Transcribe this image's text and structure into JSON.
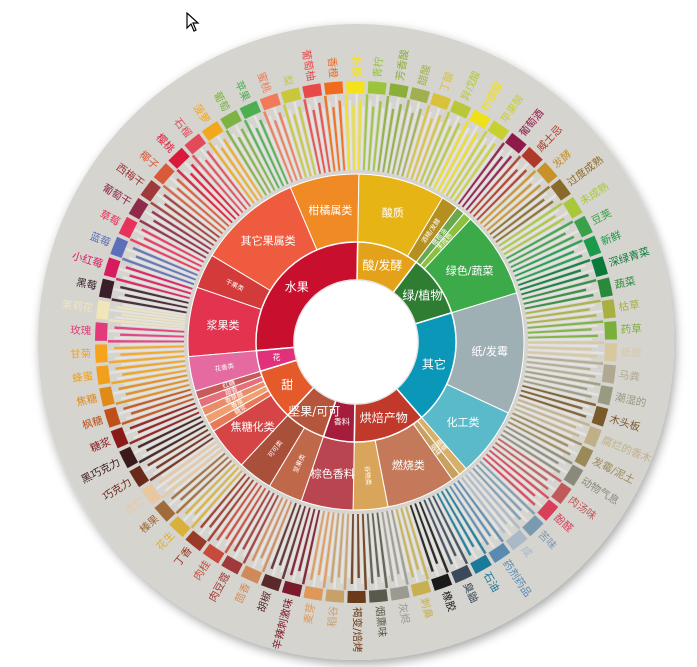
{
  "colors": {
    "fruit": "#c8102e",
    "flower": "#e0317a",
    "sweet": "#e55a2b",
    "nutty": "#a0503a",
    "roast": "#b23a48",
    "cereal": "#d9a55a",
    "other": "#0b98b8",
    "sour": "#e3a21a",
    "green": "#2e9e4f",
    "background": "#d6d4cf"
  },
  "chart_data": {
    "type": "sunburst",
    "title": "",
    "inner": [
      {
        "label": "水果",
        "weight": 16,
        "color": "#c8102e"
      },
      {
        "label": "酸/发酵",
        "weight": 6,
        "color": "#e3a21a"
      },
      {
        "label": "绿/植物",
        "weight": 6,
        "color": "#2e7d32"
      },
      {
        "label": "其它",
        "weight": 11,
        "color": "#0b98b8"
      },
      {
        "label": "烘焙产物",
        "weight": 7,
        "color": "#c0392b"
      },
      {
        "label": "香料",
        "weight": 3,
        "color": "#a61d3c"
      },
      {
        "label": "坚果/可可",
        "weight": 4,
        "color": "#b5553b"
      },
      {
        "label": "甜",
        "weight": 5,
        "color": "#e55a2b"
      },
      {
        "label": "花",
        "weight": 2,
        "color": "#e0317a"
      }
    ],
    "middle": [
      {
        "label": "浆果类",
        "parent": "水果",
        "weight": 4,
        "color": "#e2334f"
      },
      {
        "label": "干果类",
        "parent": "水果",
        "weight": 2,
        "color": "#d33b3b"
      },
      {
        "label": "其它果属类",
        "parent": "水果",
        "weight": 6,
        "color": "#ef5b3f"
      },
      {
        "label": "柑橘属类",
        "parent": "水果",
        "weight": 4,
        "color": "#f08a24"
      },
      {
        "label": "酸质",
        "parent": "酸/发酵",
        "weight": 5,
        "color": "#e7b416"
      },
      {
        "label": "酒精/发酵",
        "parent": "酸/发酵",
        "weight": 1,
        "color": "#b58f1f"
      },
      {
        "label": "橄榄油",
        "parent": "绿/植物",
        "weight": 0.5,
        "color": "#6aa84f"
      },
      {
        "label": "未成熟",
        "parent": "绿/植物",
        "weight": 0.5,
        "color": "#8bbf3f"
      },
      {
        "label": "绿色/蔬菜",
        "parent": "绿/植物",
        "weight": 5,
        "color": "#3daa4a"
      },
      {
        "label": "纸/发霉",
        "parent": "其它",
        "weight": 7,
        "color": "#9fb0b5"
      },
      {
        "label": "化工类",
        "parent": "其它",
        "weight": 4,
        "color": "#5bbac9"
      },
      {
        "label": "烟草",
        "parent": "烘焙产物",
        "weight": 0.5,
        "color": "#d9b06a"
      },
      {
        "label": "烟味",
        "parent": "烘焙产物",
        "weight": 0.5,
        "color": "#c8a060"
      },
      {
        "label": "燃烧类",
        "parent": "烘焙产物",
        "weight": 4,
        "color": "#c47a5a"
      },
      {
        "label": "谷物类",
        "parent": "烘焙产物",
        "weight": 2,
        "color": "#d9a55a"
      },
      {
        "label": "棕色香料",
        "parent": "香料",
        "weight": 3,
        "color": "#b8454f"
      },
      {
        "label": "坚果类",
        "parent": "坚果/可可",
        "weight": 2,
        "color": "#c0684a"
      },
      {
        "label": "可可类",
        "parent": "坚果/可可",
        "weight": 2,
        "color": "#a9503a"
      },
      {
        "label": "焦糖化类",
        "parent": "甜",
        "weight": 2.5,
        "color": "#d64545"
      },
      {
        "label": "糖浆",
        "parent": "甜",
        "weight": 0.5,
        "color": "#e87a5a"
      },
      {
        "label": "香草",
        "parent": "甜",
        "weight": 0.5,
        "color": "#f0a070"
      },
      {
        "label": "香草醛",
        "parent": "甜",
        "weight": 0.5,
        "color": "#e98c6a"
      },
      {
        "label": "甜香",
        "parent": "甜",
        "weight": 0.5,
        "color": "#e5707a"
      },
      {
        "label": "红糖",
        "parent": "甜",
        "weight": 0.5,
        "color": "#c85a5a"
      },
      {
        "label": "花香类",
        "parent": "花",
        "weight": 2,
        "color": "#e46aa0"
      }
    ],
    "outer": [
      {
        "label": "甘菊",
        "color": "#f7a41d"
      },
      {
        "label": "玫瑰",
        "color": "#e33a7a"
      },
      {
        "label": "茉莉花",
        "color": "#f0e6b8"
      },
      {
        "label": "黑莓",
        "color": "#3a1f2a"
      },
      {
        "label": "小红莓",
        "color": "#d81b60"
      },
      {
        "label": "蓝莓",
        "color": "#5d6fb8"
      },
      {
        "label": "草莓",
        "color": "#e8315b"
      },
      {
        "label": "葡萄干",
        "color": "#8e2a4a"
      },
      {
        "label": "西梅干",
        "color": "#a03a3a"
      },
      {
        "label": "椰子",
        "color": "#d85a3a"
      },
      {
        "label": "樱桃",
        "color": "#d91a3a"
      },
      {
        "label": "石榴",
        "color": "#e24a5a"
      },
      {
        "label": "菠萝",
        "color": "#f2a81d"
      },
      {
        "label": "葡萄",
        "color": "#7cb342"
      },
      {
        "label": "苹果",
        "color": "#4caf50"
      },
      {
        "label": "蜜桃",
        "color": "#f07a5a"
      },
      {
        "label": "梨",
        "color": "#c8c83a"
      },
      {
        "label": "葡萄柚",
        "color": "#e84a4a"
      },
      {
        "label": "香橙",
        "color": "#f26a1b"
      },
      {
        "label": "柠檬",
        "color": "#f5e21a"
      },
      {
        "label": "青柠",
        "color": "#9ac53a"
      },
      {
        "label": "芳香酸",
        "color": "#8bb03a"
      },
      {
        "label": "醋酸",
        "color": "#a0b050"
      },
      {
        "label": "丁酸",
        "color": "#d9c23a"
      },
      {
        "label": "异戊酸",
        "color": "#b8c83a"
      },
      {
        "label": "柠檬酸",
        "color": "#f0e01a"
      },
      {
        "label": "苹果酸",
        "color": "#c8d030"
      },
      {
        "label": "葡萄酒",
        "color": "#8e1a4a"
      },
      {
        "label": "威士忌",
        "color": "#b03a2a"
      },
      {
        "label": "发酵",
        "color": "#c8922a"
      },
      {
        "label": "过度成熟",
        "color": "#8a6a2a"
      },
      {
        "label": "未成熟",
        "color": "#a8c83a"
      },
      {
        "label": "豆荚",
        "color": "#3aa04a"
      },
      {
        "label": "新鲜",
        "color": "#1a9a4a"
      },
      {
        "label": "深绿青菜",
        "color": "#0a7a3a"
      },
      {
        "label": "蔬菜",
        "color": "#2a8a3a"
      },
      {
        "label": "枯草",
        "color": "#a8b040"
      },
      {
        "label": "药草",
        "color": "#7ab03a"
      },
      {
        "label": "纸板",
        "color": "#d8c8a0"
      },
      {
        "label": "马粪",
        "color": "#b0a890"
      },
      {
        "label": "潮湿的",
        "color": "#9a9a80"
      },
      {
        "label": "木头板",
        "color": "#7a5a2a"
      },
      {
        "label": "腐烂的香木",
        "color": "#c0b088"
      },
      {
        "label": "发霉/泥土",
        "color": "#9a8a5a"
      },
      {
        "label": "动物气息",
        "color": "#8a8a7a"
      },
      {
        "label": "肉汤味",
        "color": "#c05a5a"
      },
      {
        "label": "酚醛",
        "color": "#d8405a"
      },
      {
        "label": "苦味",
        "color": "#7a9ab0"
      },
      {
        "label": "咸",
        "color": "#aab8c8"
      },
      {
        "label": "药剂药品",
        "color": "#5a8ab0"
      },
      {
        "label": "石油",
        "color": "#1a7a9a"
      },
      {
        "label": "臭鼬",
        "color": "#3a4a5a"
      },
      {
        "label": "橡胶",
        "color": "#1a1a1a"
      },
      {
        "label": "刺鼻",
        "color": "#c8b050"
      },
      {
        "label": "灰烬",
        "color": "#9a9a90"
      },
      {
        "label": "烟熏味",
        "color": "#5a5a4a"
      },
      {
        "label": "褐变/焙烤",
        "color": "#6a3a1a"
      },
      {
        "label": "稻谷",
        "color": "#c8a06a"
      },
      {
        "label": "麦芽",
        "color": "#e0985a"
      },
      {
        "label": "辛辣刺激味",
        "color": "#7a1a2a"
      },
      {
        "label": "胡椒",
        "color": "#5a2a2a"
      },
      {
        "label": "茴香",
        "color": "#d08a5a"
      },
      {
        "label": "肉豆蔻",
        "color": "#a03a3a"
      },
      {
        "label": "肉桂",
        "color": "#c84a3a"
      },
      {
        "label": "丁香",
        "color": "#9a3a2a"
      },
      {
        "label": "花生",
        "color": "#d8b03a"
      },
      {
        "label": "榛果",
        "color": "#a06a3a"
      },
      {
        "label": "杏仁",
        "color": "#e8c8a0"
      },
      {
        "label": "巧克力",
        "color": "#6a2a1a"
      },
      {
        "label": "黑巧克力",
        "color": "#3a1a1a"
      },
      {
        "label": "糖浆",
        "color": "#8a1a1a"
      },
      {
        "label": "枫糖",
        "color": "#c0501a"
      },
      {
        "label": "焦糖",
        "color": "#e08a1a"
      },
      {
        "label": "蜂蜜",
        "color": "#f0a01a"
      }
    ]
  }
}
